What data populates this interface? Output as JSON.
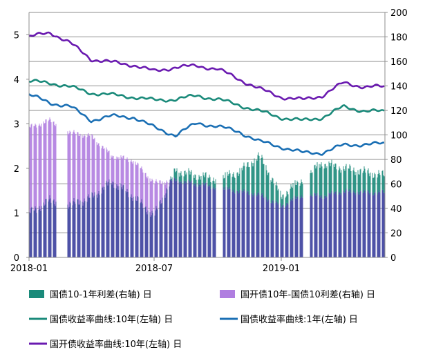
{
  "chart_data": {
    "type": "bar",
    "title": "",
    "x_ticks": [
      "2018-01",
      "2018-07",
      "2019-01"
    ],
    "x_range": [
      "2018-01-01",
      "2019-05-31"
    ],
    "left_axis": {
      "min": 0,
      "max": 5.5,
      "ticks": [
        "0",
        "1",
        "2",
        "3",
        "4",
        "5"
      ]
    },
    "right_axis": {
      "min": 0,
      "max": 200,
      "ticks": [
        "0",
        "20",
        "40",
        "60",
        "80",
        "100",
        "120",
        "140",
        "160",
        "180",
        "200"
      ]
    },
    "grid": "horizontal",
    "legend_position": "bottom",
    "legend": [
      {
        "key": "spread_10y_1y",
        "label": "国债10-1年利差(右轴) 日",
        "marker": "square",
        "color": "#1a8a7a"
      },
      {
        "key": "spread_cdb",
        "label": "国开债10年-国债10利差(右轴) 日",
        "marker": "square",
        "color": "#b07ee0"
      },
      {
        "key": "yield_10y",
        "label": "国债收益率曲线:10年(左轴) 日",
        "marker": "line",
        "color": "#1a8a7a"
      },
      {
        "key": "yield_1y",
        "label": "国债收益率曲线:1年(左轴) 日",
        "marker": "line",
        "color": "#1a6fb4"
      },
      {
        "key": "cdb_10y",
        "label": "国开债收益率曲线:10年(左轴) 日",
        "marker": "line",
        "color": "#6a1ab0"
      }
    ],
    "overlap_color": "#3b3f9e",
    "series": [
      {
        "key": "spread_10y_1y",
        "axis": "right",
        "type": "bar",
        "x": [
          "2018-01-01",
          "2018-02-01",
          "2018-03-01",
          "2018-04-01",
          "2018-05-01",
          "2018-06-01",
          "2018-07-01",
          "2018-08-01",
          "2018-09-01",
          "2018-10-01",
          "2018-11-01",
          "2018-12-01",
          "2019-01-01",
          "2019-02-01",
          "2019-03-01",
          "2019-04-01",
          "2019-05-01",
          "2019-05-31"
        ],
        "y": [
          36,
          47,
          43,
          49,
          62,
          50,
          34,
          71,
          67,
          64,
          70,
          83,
          50,
          64,
          77,
          73,
          70,
          67
        ]
      },
      {
        "key": "spread_cdb",
        "axis": "right",
        "type": "bar",
        "x": [
          "2018-01-01",
          "2018-02-01",
          "2018-03-01",
          "2018-04-01",
          "2018-05-01",
          "2018-06-01",
          "2018-07-01",
          "2018-08-01",
          "2018-09-01",
          "2018-10-01",
          "2018-11-01",
          "2018-12-01",
          "2019-01-01",
          "2019-02-01",
          "2019-03-01",
          "2019-04-01",
          "2019-05-01",
          "2019-05-31"
        ],
        "y": [
          106,
          112,
          102,
          99,
          83,
          79,
          61,
          63,
          60,
          57,
          54,
          51,
          42,
          51,
          50,
          54,
          53,
          53
        ]
      },
      {
        "key": "yield_10y",
        "axis": "left",
        "type": "line",
        "x": [
          "2018-01-01",
          "2018-02-01",
          "2018-03-01",
          "2018-04-01",
          "2018-05-01",
          "2018-06-01",
          "2018-07-01",
          "2018-08-01",
          "2018-09-01",
          "2018-10-01",
          "2018-11-01",
          "2018-12-01",
          "2019-01-01",
          "2019-02-01",
          "2019-03-01",
          "2019-04-01",
          "2019-05-01",
          "2019-05-31"
        ],
        "y": [
          3.95,
          3.92,
          3.83,
          3.69,
          3.65,
          3.6,
          3.53,
          3.55,
          3.63,
          3.55,
          3.42,
          3.28,
          3.14,
          3.07,
          3.14,
          3.38,
          3.29,
          3.27
        ]
      },
      {
        "key": "yield_1y",
        "axis": "left",
        "type": "line",
        "x": [
          "2018-01-01",
          "2018-02-01",
          "2018-03-01",
          "2018-04-01",
          "2018-05-01",
          "2018-06-01",
          "2018-07-01",
          "2018-08-01",
          "2018-09-01",
          "2018-10-01",
          "2018-11-01",
          "2018-12-01",
          "2019-01-01",
          "2019-02-01",
          "2019-03-01",
          "2019-04-01",
          "2019-05-01",
          "2019-05-31"
        ],
        "y": [
          3.65,
          3.47,
          3.39,
          3.08,
          3.17,
          3.15,
          2.92,
          2.74,
          3.02,
          2.94,
          2.82,
          2.6,
          2.48,
          2.35,
          2.35,
          2.52,
          2.54,
          2.55
        ]
      },
      {
        "key": "cdb_10y",
        "axis": "left",
        "type": "line",
        "x": [
          "2018-01-01",
          "2018-02-01",
          "2018-03-01",
          "2018-04-01",
          "2018-05-01",
          "2018-06-01",
          "2018-07-01",
          "2018-08-01",
          "2018-09-01",
          "2018-10-01",
          "2018-11-01",
          "2018-12-01",
          "2019-01-01",
          "2019-02-01",
          "2019-03-01",
          "2019-04-01",
          "2019-05-01",
          "2019-05-31"
        ],
        "y": [
          4.95,
          5.05,
          4.82,
          4.45,
          4.38,
          4.32,
          4.18,
          4.27,
          4.3,
          4.23,
          4.0,
          3.78,
          3.6,
          3.54,
          3.63,
          3.92,
          3.83,
          3.83
        ]
      }
    ]
  }
}
